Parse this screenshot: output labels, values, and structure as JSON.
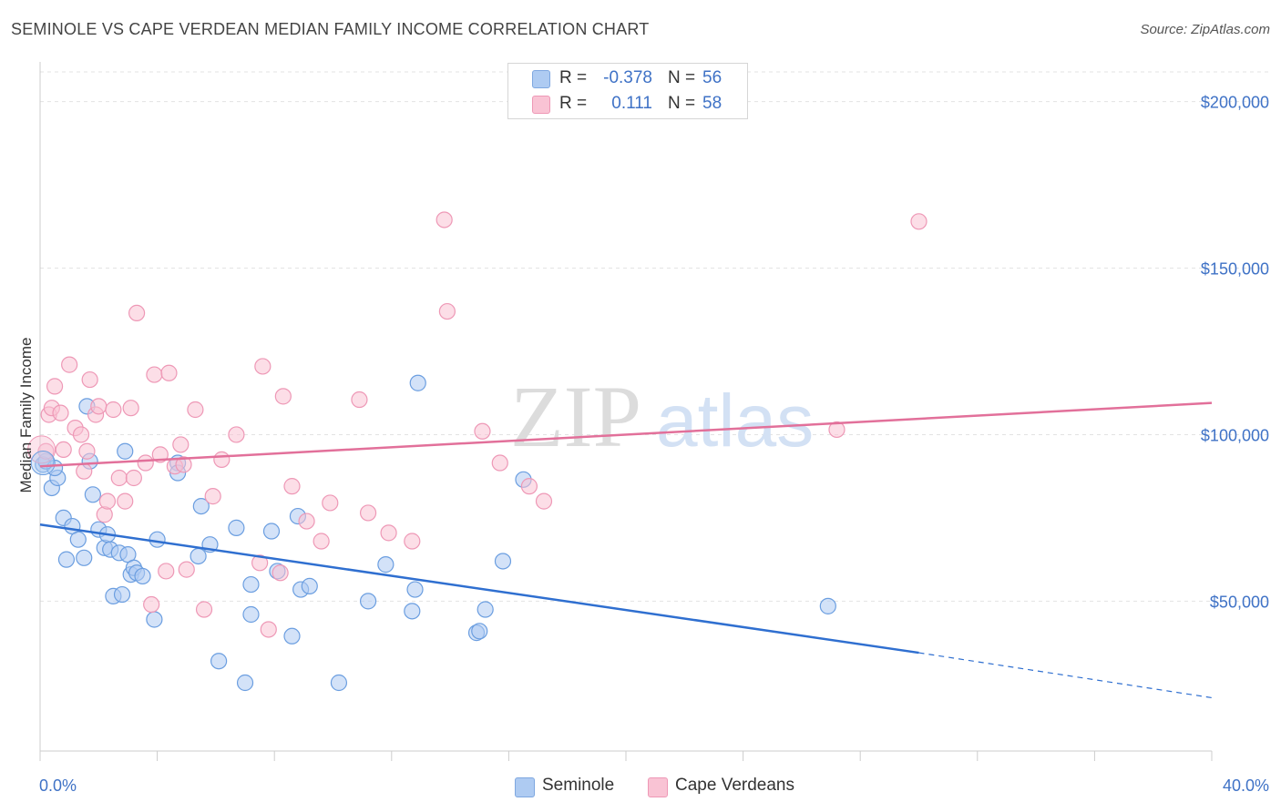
{
  "title": "SEMINOLE VS CAPE VERDEAN MEDIAN FAMILY INCOME CORRELATION CHART",
  "source": "Source: ZipAtlas.com",
  "watermark": {
    "zip": "ZIP",
    "atlas": "atlas"
  },
  "legend": {
    "rows": [
      {
        "r_label": "R =",
        "r_value": "-0.378",
        "n_label": "N =",
        "n_value": "56",
        "color": "#aecbf2",
        "border": "#7ea7e0"
      },
      {
        "r_label": "R =",
        "r_value": "0.111",
        "n_label": "N =",
        "n_value": "58",
        "color": "#f9c3d4",
        "border": "#ee98b6"
      }
    ]
  },
  "bottom_legend": [
    {
      "label": "Seminole",
      "color": "#aecbf2",
      "border": "#7ea7e0"
    },
    {
      "label": "Cape Verdeans",
      "color": "#f9c3d4",
      "border": "#ee98b6"
    }
  ],
  "chart_data": {
    "type": "scatter",
    "title": "SEMINOLE VS CAPE VERDEAN MEDIAN FAMILY INCOME CORRELATION CHART",
    "xlabel": "",
    "ylabel": "Median Family Income",
    "xlim": [
      0,
      40
    ],
    "ylim": [
      5000,
      210000
    ],
    "x_tick_labels": [
      "0.0%",
      "40.0%"
    ],
    "y_ticks": [
      50000,
      100000,
      150000,
      200000
    ],
    "y_tick_labels": [
      "$50,000",
      "$100,000",
      "$150,000",
      "$200,000"
    ],
    "grid": true,
    "legend_position": "top-center",
    "series": [
      {
        "name": "Seminole",
        "color": "#6b9ee0",
        "fill": "#aecbf2",
        "trend_color": "#2f6fd0",
        "trend": {
          "x0": 0,
          "y0": 73000,
          "x1": 30,
          "y1": 34500,
          "x_dashed_end": 40,
          "y_dashed_end": 21000
        },
        "points": [
          [
            0.1,
            91000
          ],
          [
            0.4,
            84000
          ],
          [
            0.6,
            87000
          ],
          [
            0.5,
            90000
          ],
          [
            0.8,
            75000
          ],
          [
            0.9,
            62500
          ],
          [
            1.1,
            72500
          ],
          [
            1.3,
            68500
          ],
          [
            1.5,
            63000
          ],
          [
            1.6,
            108500
          ],
          [
            1.7,
            92000
          ],
          [
            1.8,
            82000
          ],
          [
            2.0,
            71500
          ],
          [
            2.2,
            66000
          ],
          [
            2.3,
            70000
          ],
          [
            2.4,
            65500
          ],
          [
            2.5,
            51500
          ],
          [
            2.7,
            64500
          ],
          [
            2.8,
            52000
          ],
          [
            3.0,
            64000
          ],
          [
            3.1,
            58000
          ],
          [
            3.2,
            60000
          ],
          [
            3.3,
            58500
          ],
          [
            3.5,
            57500
          ],
          [
            3.9,
            44500
          ],
          [
            4.0,
            68500
          ],
          [
            4.7,
            91500
          ],
          [
            5.4,
            63500
          ],
          [
            5.5,
            78500
          ],
          [
            5.8,
            67000
          ],
          [
            6.1,
            32000
          ],
          [
            6.7,
            72000
          ],
          [
            7.0,
            25500
          ],
          [
            7.2,
            55000
          ],
          [
            7.2,
            46000
          ],
          [
            7.9,
            71000
          ],
          [
            8.1,
            59000
          ],
          [
            8.6,
            39500
          ],
          [
            8.8,
            75500
          ],
          [
            8.9,
            53500
          ],
          [
            9.2,
            54500
          ],
          [
            10.2,
            25500
          ],
          [
            11.2,
            50000
          ],
          [
            11.8,
            61000
          ],
          [
            12.7,
            47000
          ],
          [
            12.8,
            53500
          ],
          [
            12.9,
            115500
          ],
          [
            14.9,
            40500
          ],
          [
            15.0,
            41000
          ],
          [
            15.2,
            47500
          ],
          [
            15.8,
            62000
          ],
          [
            16.5,
            86500
          ],
          [
            26.9,
            48500
          ],
          [
            0.2,
            92000
          ],
          [
            4.7,
            88500
          ],
          [
            2.9,
            95000
          ]
        ]
      },
      {
        "name": "Cape Verdeans",
        "color": "#ee98b6",
        "fill": "#f9c3d4",
        "trend_color": "#e2709a",
        "trend": {
          "x0": 0,
          "y0": 90500,
          "x1": 40,
          "y1": 109500
        },
        "points": [
          [
            0.2,
            95000
          ],
          [
            0.3,
            106000
          ],
          [
            0.4,
            108000
          ],
          [
            0.5,
            114500
          ],
          [
            0.7,
            106500
          ],
          [
            0.8,
            95500
          ],
          [
            1.0,
            121000
          ],
          [
            1.2,
            102000
          ],
          [
            1.4,
            100000
          ],
          [
            1.5,
            89000
          ],
          [
            1.6,
            95000
          ],
          [
            1.7,
            116500
          ],
          [
            1.9,
            106000
          ],
          [
            2.0,
            108500
          ],
          [
            2.2,
            76000
          ],
          [
            2.3,
            80000
          ],
          [
            2.5,
            107500
          ],
          [
            2.7,
            87000
          ],
          [
            2.9,
            80000
          ],
          [
            3.1,
            108000
          ],
          [
            3.2,
            87000
          ],
          [
            3.3,
            136500
          ],
          [
            3.6,
            91500
          ],
          [
            3.8,
            49000
          ],
          [
            3.9,
            118000
          ],
          [
            4.1,
            94000
          ],
          [
            4.3,
            59000
          ],
          [
            4.4,
            118500
          ],
          [
            4.6,
            90500
          ],
          [
            4.8,
            97000
          ],
          [
            4.9,
            91000
          ],
          [
            5.0,
            59500
          ],
          [
            5.3,
            107500
          ],
          [
            5.6,
            47500
          ],
          [
            5.9,
            81500
          ],
          [
            6.2,
            92500
          ],
          [
            6.7,
            100000
          ],
          [
            7.5,
            61500
          ],
          [
            7.6,
            120500
          ],
          [
            7.8,
            41500
          ],
          [
            8.2,
            58500
          ],
          [
            8.3,
            111500
          ],
          [
            8.6,
            84500
          ],
          [
            9.1,
            74000
          ],
          [
            9.6,
            68000
          ],
          [
            9.9,
            79500
          ],
          [
            10.9,
            110500
          ],
          [
            11.2,
            76500
          ],
          [
            11.9,
            70500
          ],
          [
            12.7,
            68000
          ],
          [
            13.8,
            164500
          ],
          [
            13.9,
            137000
          ],
          [
            15.1,
            101000
          ],
          [
            15.7,
            91500
          ],
          [
            16.7,
            84500
          ],
          [
            17.2,
            80000
          ],
          [
            27.2,
            101500
          ],
          [
            30.0,
            164000
          ]
        ]
      }
    ]
  }
}
